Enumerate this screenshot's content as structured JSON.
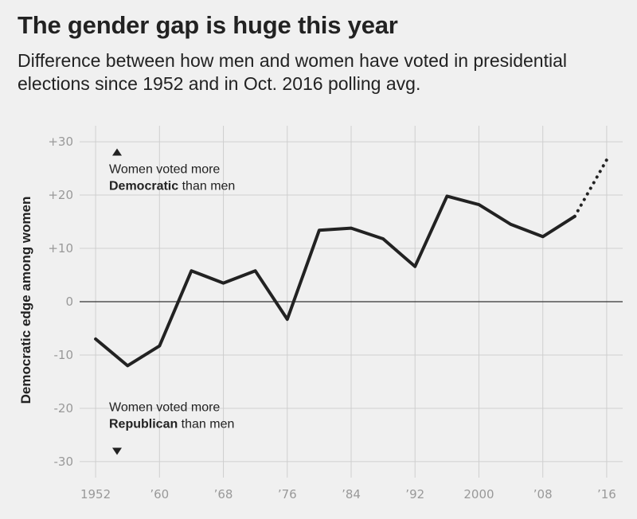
{
  "title": "The gender gap is huge this year",
  "subtitle": "Difference between how men and women have voted in presidential elections since 1952 and in Oct. 2016 polling avg.",
  "chart_data": {
    "type": "line",
    "title": "The gender gap is huge this year",
    "ylabel": "Democratic edge among women",
    "xlim": [
      1950,
      2018
    ],
    "ylim": [
      -33,
      33
    ],
    "x_ticks": [
      1952,
      1960,
      1968,
      1976,
      1984,
      1992,
      2000,
      2008,
      2016
    ],
    "x_tick_labels": [
      "1952",
      "’60",
      "’68",
      "’76",
      "’84",
      "’92",
      "2000",
      "’08",
      "’16"
    ],
    "y_ticks": [
      30,
      20,
      10,
      0,
      -10,
      -20,
      -30
    ],
    "y_tick_labels": [
      "+30",
      "+20",
      "+10",
      "0",
      "-10",
      "-20",
      "-30"
    ],
    "grid": true,
    "series": [
      {
        "style": "solid",
        "x": [
          1952,
          1956,
          1960,
          1964,
          1968,
          1972,
          1976,
          1980,
          1984,
          1988,
          1992,
          1996,
          2000,
          2004,
          2008,
          2012
        ],
        "y": [
          -7,
          -12,
          -8.3,
          5.8,
          3.5,
          5.8,
          -3.3,
          13.4,
          13.8,
          11.8,
          6.6,
          19.8,
          18.2,
          14.5,
          12.2,
          16
        ]
      },
      {
        "style": "dotted",
        "x": [
          2012,
          2016
        ],
        "y": [
          16,
          26.6
        ]
      }
    ],
    "annotations": [
      {
        "lines": [
          [
            {
              "text": "Women voted more",
              "bold": false
            }
          ],
          [
            {
              "text": "Democratic",
              "bold": true
            },
            {
              "text": " than men",
              "bold": false
            }
          ]
        ],
        "arrow": "up",
        "at_y": 28
      },
      {
        "lines": [
          [
            {
              "text": "Women voted more",
              "bold": false
            }
          ],
          [
            {
              "text": "Republican",
              "bold": true
            },
            {
              "text": " than men",
              "bold": false
            }
          ]
        ],
        "arrow": "down",
        "at_y": -28
      }
    ]
  }
}
